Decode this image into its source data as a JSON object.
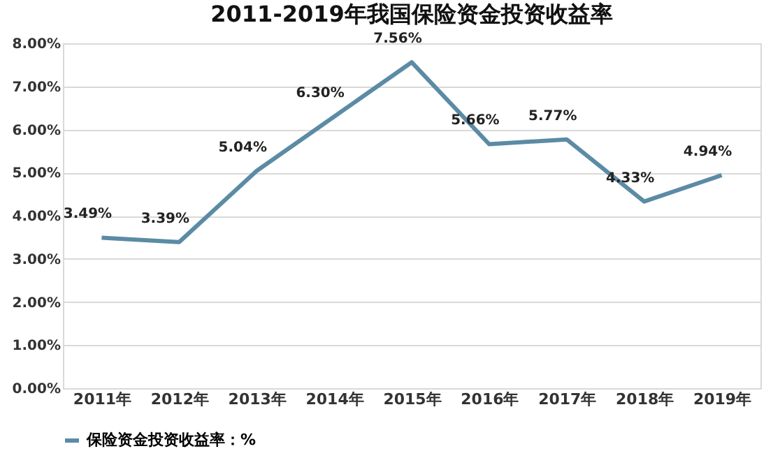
{
  "chart_data": {
    "type": "line",
    "title": "2011-2019年我国保险资金投资收益率",
    "categories": [
      "2011年",
      "2012年",
      "2013年",
      "2014年",
      "2015年",
      "2016年",
      "2017年",
      "2018年",
      "2019年"
    ],
    "series": [
      {
        "name": "保险资金投资收益率：%",
        "color": "#5b8ba5",
        "values": [
          3.49,
          3.39,
          5.04,
          6.3,
          7.56,
          5.66,
          5.77,
          4.33,
          4.94
        ],
        "value_labels": [
          "3.49%",
          "3.39%",
          "5.04%",
          "6.30%",
          "7.56%",
          "5.66%",
          "5.77%",
          "4.33%",
          "4.94%"
        ]
      }
    ],
    "ylim": [
      0,
      8
    ],
    "yticks": [
      {
        "value": 0,
        "label": "0.00%"
      },
      {
        "value": 1,
        "label": "1.00%"
      },
      {
        "value": 2,
        "label": "2.00%"
      },
      {
        "value": 3,
        "label": "3.00%"
      },
      {
        "value": 4,
        "label": "4.00%"
      },
      {
        "value": 5,
        "label": "5.00%"
      },
      {
        "value": 6,
        "label": "6.00%"
      },
      {
        "value": 7,
        "label": "7.00%"
      },
      {
        "value": 8,
        "label": "8.00%"
      }
    ],
    "grid": "y",
    "legend": "bottom",
    "marker": "none",
    "line_style": "solid"
  }
}
